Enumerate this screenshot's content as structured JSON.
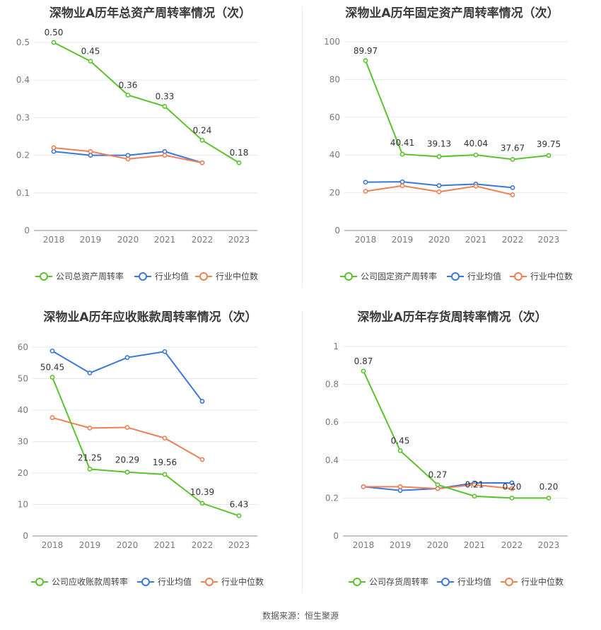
{
  "source_label": "数据来源：恒生聚源",
  "colors": {
    "company": "#5bc22e",
    "avg": "#3c78d8",
    "median": "#f07f54"
  },
  "legend": {
    "avg": "行业均值",
    "median": "行业中位数"
  },
  "chart_data": [
    {
      "type": "line",
      "title": "深物业A历年总资产周转率情况（次）",
      "categories": [
        "2018",
        "2019",
        "2020",
        "2021",
        "2022",
        "2023"
      ],
      "yticks": [
        "0",
        "0.1",
        "0.2",
        "0.3",
        "0.4",
        "0.5"
      ],
      "ylim": [
        0,
        0.55
      ],
      "series": [
        {
          "name": "公司总资产周转率",
          "values": [
            0.5,
            0.45,
            0.36,
            0.33,
            0.24,
            0.18
          ],
          "labels": [
            "0.50",
            "0.45",
            "0.36",
            "0.33",
            "0.24",
            "0.18"
          ]
        },
        {
          "name": "行业均值",
          "values": [
            0.21,
            0.2,
            0.2,
            0.21,
            0.18,
            null
          ]
        },
        {
          "name": "行业中位数",
          "values": [
            0.22,
            0.21,
            0.19,
            0.2,
            0.18,
            null
          ]
        }
      ]
    },
    {
      "type": "line",
      "title": "深物业A历年固定资产周转率情况（次）",
      "categories": [
        "2018",
        "2019",
        "2020",
        "2021",
        "2022",
        "2023"
      ],
      "yticks": [
        "0",
        "20",
        "40",
        "60",
        "80",
        "100"
      ],
      "ylim": [
        0,
        100
      ],
      "series": [
        {
          "name": "公司固定资产周转率",
          "values": [
            89.97,
            40.41,
            39.13,
            40.04,
            37.67,
            39.75
          ],
          "labels": [
            "89.97",
            "40.41",
            "39.13",
            "40.04",
            "37.67",
            "39.75"
          ]
        },
        {
          "name": "行业均值",
          "values": [
            25.6,
            25.8,
            23.8,
            24.6,
            22.7,
            null
          ]
        },
        {
          "name": "行业中位数",
          "values": [
            20.8,
            23.7,
            20.5,
            23.5,
            18.9,
            null
          ]
        }
      ]
    },
    {
      "type": "line",
      "title": "深物业A历年应收账款周转率情况（次）",
      "categories": [
        "2018",
        "2019",
        "2020",
        "2021",
        "2022",
        "2023"
      ],
      "yticks": [
        "0",
        "10",
        "20",
        "30",
        "40",
        "50",
        "60"
      ],
      "ylim": [
        0,
        60
      ],
      "series": [
        {
          "name": "公司应收账款周转率",
          "values": [
            50.45,
            21.25,
            20.29,
            19.56,
            10.39,
            6.43
          ],
          "labels": [
            "50.45",
            "21.25",
            "20.29",
            "19.56",
            "10.39",
            "6.43"
          ]
        },
        {
          "name": "行业均值",
          "values": [
            58.8,
            51.8,
            56.7,
            58.6,
            42.8,
            null
          ]
        },
        {
          "name": "行业中位数",
          "values": [
            37.6,
            34.3,
            34.5,
            31.1,
            24.3,
            null
          ]
        }
      ]
    },
    {
      "type": "line",
      "title": "深物业A历年存货周转率情况（次）",
      "categories": [
        "2018",
        "2019",
        "2020",
        "2021",
        "2022",
        "2023"
      ],
      "yticks": [
        "0",
        "0.2",
        "0.4",
        "0.6",
        "0.8",
        "1"
      ],
      "ylim": [
        0,
        1
      ],
      "series": [
        {
          "name": "公司存货周转率",
          "values": [
            0.87,
            0.45,
            0.27,
            0.21,
            0.2,
            0.2
          ],
          "labels": [
            "0.87",
            "0.45",
            "0.27",
            "0.21",
            "0.20",
            "0.20"
          ]
        },
        {
          "name": "行业均值",
          "values": [
            0.26,
            0.24,
            0.25,
            0.28,
            0.28,
            null
          ]
        },
        {
          "name": "行业中位数",
          "values": [
            0.26,
            0.26,
            0.25,
            0.27,
            0.25,
            null
          ]
        }
      ]
    }
  ]
}
